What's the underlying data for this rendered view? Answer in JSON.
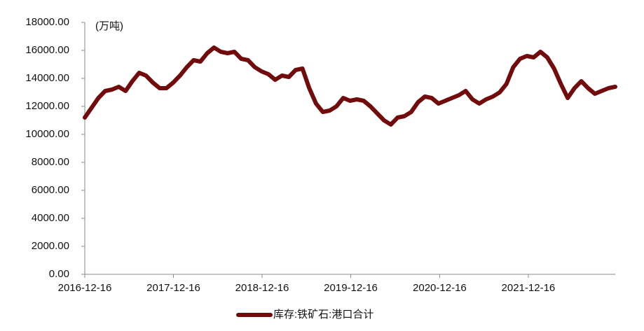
{
  "chart_data": {
    "type": "line",
    "unit_label": "(万吨)",
    "x": [
      "2016-12-16",
      "2017-01-13",
      "2017-02-10",
      "2017-03-10",
      "2017-04-07",
      "2017-05-05",
      "2017-06-02",
      "2017-06-30",
      "2017-07-28",
      "2017-08-25",
      "2017-09-22",
      "2017-10-20",
      "2017-11-17",
      "2017-12-15",
      "2018-01-12",
      "2018-02-09",
      "2018-03-09",
      "2018-04-06",
      "2018-05-04",
      "2018-06-01",
      "2018-06-29",
      "2018-07-27",
      "2018-08-24",
      "2018-09-21",
      "2018-10-19",
      "2018-11-16",
      "2018-12-14",
      "2019-01-11",
      "2019-02-08",
      "2019-03-08",
      "2019-04-05",
      "2019-05-03",
      "2019-05-31",
      "2019-06-28",
      "2019-07-26",
      "2019-08-23",
      "2019-09-20",
      "2019-10-18",
      "2019-11-15",
      "2019-12-13",
      "2020-01-10",
      "2020-02-07",
      "2020-03-06",
      "2020-04-03",
      "2020-05-01",
      "2020-05-29",
      "2020-06-26",
      "2020-07-24",
      "2020-08-21",
      "2020-09-18",
      "2020-10-16",
      "2020-11-13",
      "2020-12-11",
      "2021-01-08",
      "2021-02-05",
      "2021-03-05",
      "2021-04-02",
      "2021-04-30",
      "2021-05-28",
      "2021-06-25",
      "2021-07-23",
      "2021-08-20",
      "2021-09-17",
      "2021-10-15",
      "2021-11-12",
      "2021-12-10",
      "2022-01-07",
      "2022-02-04",
      "2022-03-04",
      "2022-04-01",
      "2022-04-29",
      "2022-05-27",
      "2022-06-24",
      "2022-07-22",
      "2022-08-19",
      "2022-09-16",
      "2022-10-14",
      "2022-11-11",
      "2022-12-09"
    ],
    "series": [
      {
        "name": "库存:铁矿石:港口合计",
        "color": "#720c0c",
        "values": [
          11200,
          11900,
          12600,
          13100,
          13200,
          13400,
          13100,
          13800,
          14400,
          14200,
          13700,
          13300,
          13300,
          13700,
          14200,
          14800,
          15300,
          15200,
          15800,
          16200,
          15900,
          15800,
          15900,
          15400,
          15300,
          14800,
          14500,
          14300,
          13900,
          14200,
          14100,
          14600,
          14700,
          13300,
          12200,
          11600,
          11700,
          12000,
          12600,
          12400,
          12500,
          12400,
          12000,
          11500,
          11000,
          10700,
          11200,
          11300,
          11600,
          12300,
          12700,
          12600,
          12200,
          12400,
          12600,
          12800,
          13100,
          12500,
          12200,
          12500,
          12700,
          13000,
          13600,
          14800,
          15400,
          15600,
          15500,
          15900,
          15500,
          14700,
          13600,
          12600,
          13300,
          13800,
          13300,
          12900,
          13100,
          13300,
          13400
        ]
      }
    ],
    "xlim": [
      "2016-12-16",
      "2022-12-09"
    ],
    "xticks": [
      "2016-12-16",
      "2017-12-16",
      "2018-12-16",
      "2019-12-16",
      "2020-12-16",
      "2021-12-16"
    ],
    "ylim": [
      0,
      18000
    ],
    "yticks": [
      {
        "value": 0,
        "label": "0.00"
      },
      {
        "value": 2000,
        "label": "2000.00"
      },
      {
        "value": 4000,
        "label": "4000.00"
      },
      {
        "value": 6000,
        "label": "6000.00"
      },
      {
        "value": 8000,
        "label": "8000.00"
      },
      {
        "value": 10000,
        "label": "10000.00"
      },
      {
        "value": 12000,
        "label": "12000.00"
      },
      {
        "value": 14000,
        "label": "14000.00"
      },
      {
        "value": 16000,
        "label": "16000.00"
      },
      {
        "value": 18000,
        "label": "18000.00"
      }
    ],
    "legend": "bottom"
  }
}
